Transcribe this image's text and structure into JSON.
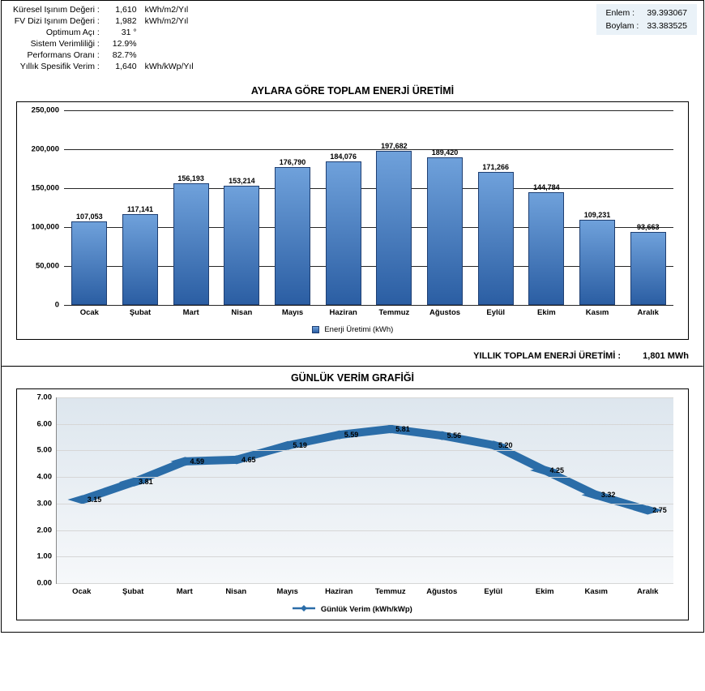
{
  "stats": {
    "rows": [
      {
        "label": "Küresel Işınım Değeri :",
        "value": "1,610",
        "unit": "kWh/m2/Yıl"
      },
      {
        "label": "FV Dizi Işınım Değeri :",
        "value": "1,982",
        "unit": "kWh/m2/Yıl"
      },
      {
        "label": "Optimum Açı :",
        "value": "31 °",
        "unit": ""
      },
      {
        "label": "Sistem Verimliliği :",
        "value": "12.9%",
        "unit": ""
      },
      {
        "label": "Performans Oranı :",
        "value": "82.7%",
        "unit": ""
      },
      {
        "label": "Yıllık Spesifik Verim :",
        "value": "1,640",
        "unit": "kWh/kWp/Yıl"
      }
    ]
  },
  "coords": {
    "lat_label": "Enlem :",
    "lat_value": "39.393067",
    "lon_label": "Boylam :",
    "lon_value": "33.383525",
    "box_bg": "#eaf2f8"
  },
  "bar_chart": {
    "title": "AYLARA GÖRE TOPLAM ENERJİ ÜRETİMİ",
    "type": "bar",
    "categories": [
      "Ocak",
      "Şubat",
      "Mart",
      "Nisan",
      "Mayıs",
      "Haziran",
      "Temmuz",
      "Ağustos",
      "Eylül",
      "Ekim",
      "Kasım",
      "Aralık"
    ],
    "values": [
      107053,
      117141,
      156193,
      153214,
      176790,
      184076,
      197682,
      189420,
      171266,
      144784,
      109231,
      93663
    ],
    "value_labels": [
      "107,053",
      "117,141",
      "156,193",
      "153,214",
      "176,790",
      "184,076",
      "197,682",
      "189,420",
      "171,266",
      "144,784",
      "109,231",
      "93,663"
    ],
    "ylim": [
      0,
      250000
    ],
    "yticks": [
      0,
      50000,
      100000,
      150000,
      200000,
      250000
    ],
    "ytick_labels": [
      "0",
      "50,000",
      "100,000",
      "150,000",
      "200,000",
      "250,000"
    ],
    "bar_fill_top": "#6fa1db",
    "bar_fill_bottom": "#2b5ea3",
    "bar_border": "#1f3f72",
    "grid_color": "#000000",
    "background_color": "#ffffff",
    "legend_label": "Enerji Üretimi (kWh)",
    "annual_total_label": "YILLIK TOPLAM ENERJİ ÜRETİMİ :",
    "annual_total_value": "1,801 MWh"
  },
  "line_chart": {
    "title": "GÜNLÜK VERİM GRAFİĞİ",
    "type": "line",
    "categories": [
      "Ocak",
      "Şubat",
      "Mart",
      "Nisan",
      "Mayıs",
      "Haziran",
      "Temmuz",
      "Ağustos",
      "Eylül",
      "Ekim",
      "Kasım",
      "Aralık"
    ],
    "values": [
      3.15,
      3.81,
      4.59,
      4.65,
      5.19,
      5.59,
      5.81,
      5.56,
      5.2,
      4.25,
      3.32,
      2.75
    ],
    "value_labels": [
      "3.15",
      "3.81",
      "4.59",
      "4.65",
      "5.19",
      "5.59",
      "5.81",
      "5.56",
      "5.20",
      "4.25",
      "3.32",
      "2.75"
    ],
    "ylim": [
      0,
      7.0
    ],
    "yticks": [
      0.0,
      1.0,
      2.0,
      3.0,
      4.0,
      5.0,
      6.0,
      7.0
    ],
    "ytick_labels": [
      "0.00",
      "1.00",
      "2.00",
      "3.00",
      "4.00",
      "5.00",
      "6.00",
      "7.00"
    ],
    "line_color": "#2b6da8",
    "marker_color": "#2b6da8",
    "marker_size": 6,
    "line_width": 2.5,
    "background_top": "#dde6ee",
    "background_bottom": "#f6f8fa",
    "grid_color": "#d6d6d6",
    "legend_label": "Günlük Verim (kWh/kWp)"
  }
}
